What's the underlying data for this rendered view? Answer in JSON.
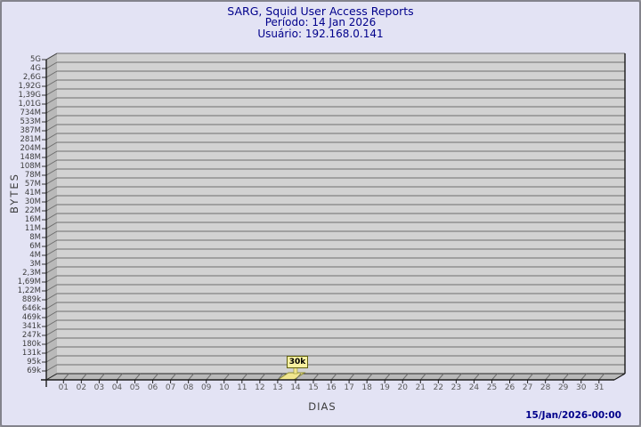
{
  "header": {
    "title": "SARG, Squid User Access Reports",
    "period": "Período: 14 Jan 2026",
    "user": "Usuário: 192.168.0.141"
  },
  "footer": {
    "timestamp": "15/Jan/2026-00:00"
  },
  "chart_data": {
    "type": "bar",
    "title": "SARG, Squid User Access Reports",
    "subtitle": [
      "Período: 14 Jan 2026",
      "Usuário: 192.168.0.141"
    ],
    "xlabel": "DIAS",
    "ylabel": "BYTES",
    "x_ticks": [
      "01",
      "02",
      "03",
      "04",
      "05",
      "06",
      "07",
      "08",
      "09",
      "10",
      "11",
      "12",
      "13",
      "14",
      "15",
      "16",
      "17",
      "18",
      "19",
      "20",
      "21",
      "22",
      "23",
      "24",
      "25",
      "26",
      "27",
      "28",
      "29",
      "30",
      "31"
    ],
    "y_ticks": [
      "5G",
      "4G",
      "2,6G",
      "1,92G",
      "1,39G",
      "1,01G",
      "734M",
      "533M",
      "387M",
      "281M",
      "204M",
      "148M",
      "108M",
      "78M",
      "57M",
      "41M",
      "30M",
      "22M",
      "16M",
      "11M",
      "8M",
      "6M",
      "4M",
      "3M",
      "2,3M",
      "1,69M",
      "1,22M",
      "889k",
      "646k",
      "469k",
      "341k",
      "247k",
      "180k",
      "131k",
      "95k",
      "69k"
    ],
    "y_scale": "logarithmic",
    "grid": true,
    "style": "3d-bar",
    "values": [
      0,
      0,
      0,
      0,
      0,
      0,
      0,
      0,
      0,
      0,
      0,
      0,
      0,
      30000,
      0,
      0,
      0,
      0,
      0,
      0,
      0,
      0,
      0,
      0,
      0,
      0,
      0,
      0,
      0,
      0,
      0
    ],
    "bar_day": "14",
    "bar_label": "30k",
    "colors": {
      "title": "#00008b",
      "background": "#e3e3f4",
      "plot_background": "#d2d2d2",
      "grid_line": "#6e6e6e",
      "wall": "#b9b9b9",
      "axis": "#1a1a1a",
      "bar_fill": "#f1e68f",
      "bar_stroke": "#8f8f30",
      "callout_background": "#f8f1a0",
      "callout_border": "#5f5f10",
      "timestamp": "#00008b"
    }
  }
}
